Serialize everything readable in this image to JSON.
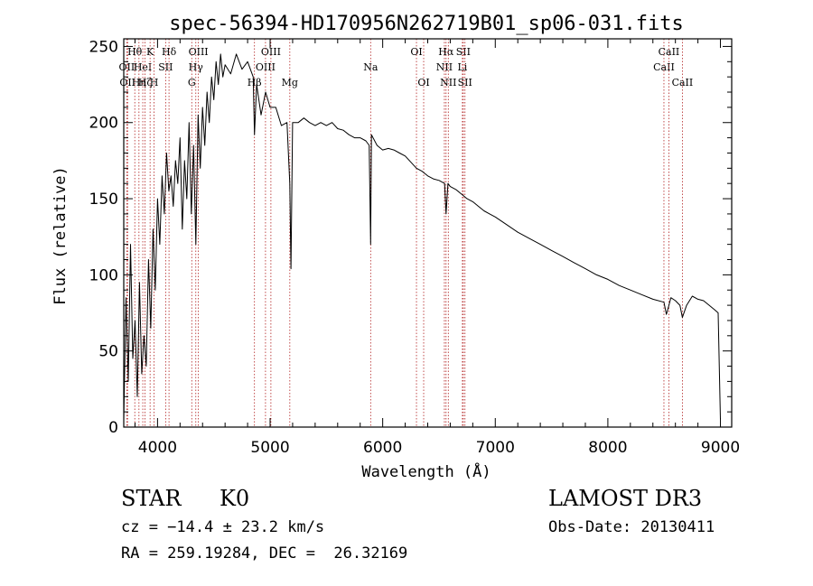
{
  "chart_data": {
    "type": "line",
    "title": "spec-56394-HD170956N262719B01_sp06-031.fits",
    "xlabel": "Wavelength (Å)",
    "ylabel": "Flux (relative)",
    "xlim": [
      3700,
      9100
    ],
    "ylim": [
      0,
      255
    ],
    "x_ticks": [
      4000,
      5000,
      6000,
      7000,
      8000,
      9000
    ],
    "y_ticks": [
      0,
      50,
      100,
      150,
      200,
      250
    ],
    "grid": false,
    "line_color": "#000000",
    "marker_color": "#b22222",
    "series": [
      {
        "x": [
          3700,
          3720,
          3740,
          3760,
          3780,
          3800,
          3820,
          3840,
          3860,
          3880,
          3900,
          3920,
          3940,
          3960,
          3980,
          4000,
          4020,
          4040,
          4060,
          4080,
          4100,
          4120,
          4140,
          4160,
          4180,
          4200,
          4220,
          4240,
          4260,
          4280,
          4300,
          4320,
          4340,
          4360,
          4380,
          4400,
          4420,
          4440,
          4460,
          4480,
          4500,
          4520,
          4540,
          4560,
          4580,
          4600,
          4650,
          4700,
          4750,
          4800,
          4850,
          4861,
          4880,
          4920,
          4960,
          5000,
          5050,
          5100,
          5150,
          5175,
          5185,
          5200,
          5250,
          5300,
          5350,
          5400,
          5450,
          5500,
          5550,
          5600,
          5650,
          5700,
          5750,
          5800,
          5850,
          5880,
          5893,
          5900,
          5950,
          6000,
          6050,
          6100,
          6150,
          6200,
          6250,
          6300,
          6350,
          6400,
          6450,
          6500,
          6550,
          6563,
          6580,
          6600,
          6650,
          6700,
          6750,
          6800,
          6850,
          6900,
          6950,
          7000,
          7100,
          7200,
          7300,
          7400,
          7500,
          7600,
          7700,
          7800,
          7900,
          8000,
          8100,
          8200,
          8300,
          8400,
          8498,
          8520,
          8542,
          8560,
          8600,
          8640,
          8662,
          8700,
          8750,
          8800,
          8850,
          8900,
          8950,
          8980,
          9000
        ],
        "y": [
          5,
          85,
          30,
          120,
          45,
          70,
          20,
          95,
          35,
          60,
          40,
          110,
          65,
          130,
          90,
          150,
          120,
          165,
          140,
          180,
          155,
          165,
          145,
          175,
          160,
          190,
          130,
          175,
          150,
          200,
          140,
          185,
          120,
          205,
          170,
          210,
          185,
          220,
          200,
          230,
          215,
          240,
          225,
          245,
          230,
          238,
          232,
          245,
          235,
          240,
          230,
          192,
          225,
          205,
          220,
          210,
          210,
          198,
          200,
          160,
          104,
          200,
          200,
          203,
          200,
          198,
          200,
          198,
          200,
          196,
          195,
          192,
          190,
          190,
          188,
          185,
          120,
          192,
          185,
          182,
          183,
          182,
          180,
          178,
          174,
          170,
          168,
          165,
          163,
          162,
          160,
          140,
          160,
          158,
          156,
          153,
          150,
          148,
          145,
          142,
          140,
          138,
          133,
          128,
          124,
          120,
          116,
          112,
          108,
          104,
          100,
          97,
          93,
          90,
          87,
          84,
          82,
          74,
          80,
          85,
          83,
          80,
          72,
          80,
          86,
          84,
          83,
          80,
          77,
          75,
          5
        ],
        "values": [
          5,
          85,
          30,
          120,
          45,
          70,
          20,
          95,
          35,
          60,
          40,
          110,
          65,
          130,
          90,
          150,
          120,
          165,
          140,
          180,
          155,
          165,
          145,
          175,
          160,
          190,
          130,
          175,
          150,
          200,
          140,
          185,
          120,
          205,
          170,
          210,
          185,
          220,
          200,
          230,
          215,
          240,
          225,
          245,
          230,
          238,
          232,
          245,
          235,
          240,
          230,
          192,
          225,
          205,
          220,
          210,
          210,
          198,
          200,
          160,
          104,
          200,
          200,
          203,
          200,
          198,
          200,
          198,
          200,
          196,
          195,
          192,
          190,
          190,
          188,
          185,
          120,
          192,
          185,
          182,
          183,
          182,
          180,
          178,
          174,
          170,
          168,
          165,
          163,
          162,
          160,
          140,
          160,
          158,
          156,
          153,
          150,
          148,
          145,
          142,
          140,
          138,
          133,
          128,
          124,
          120,
          116,
          112,
          108,
          104,
          100,
          97,
          93,
          90,
          87,
          84,
          82,
          74,
          80,
          85,
          83,
          80,
          72,
          80,
          86,
          84,
          83,
          80,
          77,
          75,
          5
        ]
      }
    ],
    "line_markers": [
      {
        "x": 3727,
        "label": "OII",
        "row": 2
      },
      {
        "x": 3734,
        "label": "OII",
        "row": 3
      },
      {
        "x": 3798,
        "label": "Hθ",
        "row": 1
      },
      {
        "x": 3835,
        "label": "Hη",
        "row": 3
      },
      {
        "x": 3869,
        "label": "HeI",
        "row": 2
      },
      {
        "x": 3889,
        "label": "Hζ",
        "row": 3
      },
      {
        "x": 3934,
        "label": "K",
        "row": 1
      },
      {
        "x": 3969,
        "label": "H",
        "row": 3
      },
      {
        "x": 4072,
        "label": "SII",
        "row": 2
      },
      {
        "x": 4102,
        "label": "Hδ",
        "row": 1
      },
      {
        "x": 4304,
        "label": "G",
        "row": 3
      },
      {
        "x": 4340,
        "label": "Hγ",
        "row": 2
      },
      {
        "x": 4363,
        "label": "OIII",
        "row": 1
      },
      {
        "x": 4861,
        "label": "Hβ",
        "row": 3
      },
      {
        "x": 4959,
        "label": "OIII",
        "row": 2
      },
      {
        "x": 5007,
        "label": "OIII",
        "row": 1
      },
      {
        "x": 5175,
        "label": "Mg",
        "row": 3
      },
      {
        "x": 5893,
        "label": "Na",
        "row": 2
      },
      {
        "x": 6300,
        "label": "OI",
        "row": 1
      },
      {
        "x": 6364,
        "label": "OI",
        "row": 3
      },
      {
        "x": 6548,
        "label": "NII",
        "row": 2
      },
      {
        "x": 6563,
        "label": "Hα",
        "row": 1
      },
      {
        "x": 6583,
        "label": "NII",
        "row": 3
      },
      {
        "x": 6708,
        "label": "Li",
        "row": 2
      },
      {
        "x": 6716,
        "label": "SII",
        "row": 1
      },
      {
        "x": 6731,
        "label": "SII",
        "row": 3
      },
      {
        "x": 8498,
        "label": "CaII",
        "row": 2
      },
      {
        "x": 8542,
        "label": "CaII",
        "row": 1
      },
      {
        "x": 8662,
        "label": "CaII",
        "row": 3
      }
    ]
  },
  "info": {
    "object_class": "STAR",
    "subclass": "K0",
    "survey": "LAMOST DR3",
    "redshift": "cz = −14.4 ± 23.2 km/s",
    "obs_date": "Obs-Date: 20130411",
    "coords": "RA = 259.19284, DEC =  26.32169"
  }
}
